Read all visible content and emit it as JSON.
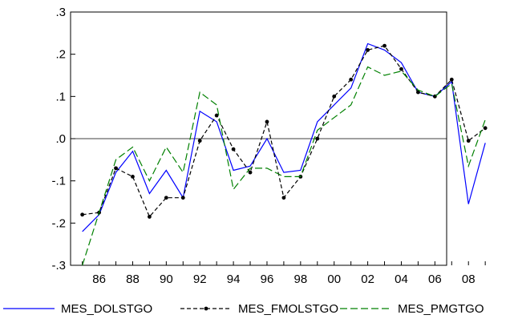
{
  "chart_data": {
    "type": "line",
    "x": [
      "1985",
      "1986",
      "1987",
      "1988",
      "1989",
      "1990",
      "1991",
      "1992",
      "1993",
      "1994",
      "1995",
      "1996",
      "1997",
      "1998",
      "1999",
      "2000",
      "2001",
      "2002",
      "2003",
      "2004",
      "2005",
      "2006",
      "2007",
      "2008",
      "2009"
    ],
    "x_tick_labels": [
      "86",
      "88",
      "90",
      "92",
      "94",
      "96",
      "98",
      "00",
      "02",
      "04",
      "06",
      "08"
    ],
    "x_tick_years": [
      "1986",
      "1988",
      "1990",
      "1992",
      "1994",
      "1996",
      "1998",
      "2000",
      "2002",
      "2004",
      "2006",
      "2008"
    ],
    "y_tick_labels": [
      ".3",
      ".2",
      ".1",
      ".0",
      "-.1",
      "-.2",
      "-.3"
    ],
    "y_tick_values": [
      0.3,
      0.2,
      0.1,
      0.0,
      -0.1,
      -0.2,
      -0.3
    ],
    "ylim": [
      -0.3,
      0.3
    ],
    "grid": false,
    "zero_line": true,
    "legend_position": "bottom",
    "series": [
      {
        "name": "MES_DOLSTGO",
        "color": "#0000ff",
        "dash": "solid",
        "markers": false,
        "values": [
          -0.22,
          -0.18,
          -0.08,
          -0.03,
          -0.13,
          -0.075,
          -0.14,
          0.065,
          0.04,
          -0.075,
          -0.065,
          0.0,
          -0.08,
          -0.075,
          0.04,
          0.08,
          0.12,
          0.225,
          0.21,
          0.18,
          0.11,
          0.1,
          0.135,
          -0.155,
          -0.01
        ]
      },
      {
        "name": "MES_FMOLSTGO",
        "color": "#000000",
        "dash": "dash-dot",
        "markers": true,
        "values": [
          -0.18,
          -0.175,
          -0.07,
          -0.09,
          -0.185,
          -0.14,
          -0.14,
          -0.005,
          0.055,
          -0.025,
          -0.08,
          0.04,
          -0.14,
          -0.09,
          0.0,
          0.1,
          0.14,
          0.21,
          0.22,
          0.165,
          0.11,
          0.1,
          0.14,
          -0.005,
          0.025
        ]
      },
      {
        "name": "MES_PMGTGO",
        "color": "#008000",
        "dash": "long-dash",
        "markers": false,
        "values": [
          -0.3,
          -0.175,
          -0.05,
          -0.02,
          -0.1,
          -0.02,
          -0.08,
          0.11,
          0.08,
          -0.12,
          -0.07,
          -0.07,
          -0.09,
          -0.09,
          0.02,
          0.05,
          0.08,
          0.17,
          0.15,
          0.16,
          0.115,
          0.1,
          0.13,
          -0.065,
          0.045
        ]
      }
    ]
  }
}
